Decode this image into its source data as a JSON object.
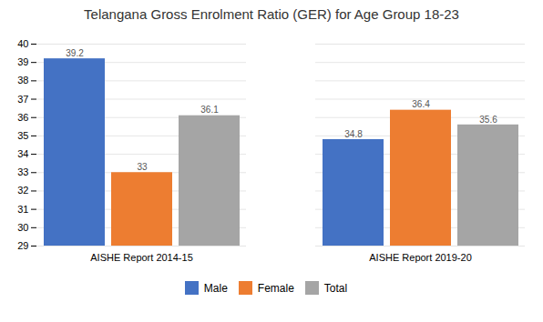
{
  "chart_data": {
    "type": "bar",
    "title": "Telangana Gross Enrolment Ratio (GER) for Age Group 18-23",
    "categories": [
      "AISHE Report 2014-15",
      "AISHE Report 2019-20"
    ],
    "series": [
      {
        "name": "Male",
        "color": "#4472C4",
        "values": [
          39.2,
          34.8
        ]
      },
      {
        "name": "Female",
        "color": "#ED7D31",
        "values": [
          33.0,
          36.4
        ]
      },
      {
        "name": "Total",
        "color": "#A5A5A5",
        "values": [
          36.1,
          35.6
        ]
      }
    ],
    "ylim": [
      29,
      40
    ],
    "yticks": [
      29,
      30,
      31,
      32,
      33,
      34,
      35,
      36,
      37,
      38,
      39,
      40
    ],
    "grid": true,
    "legend": "bottom",
    "data_labels": true
  }
}
